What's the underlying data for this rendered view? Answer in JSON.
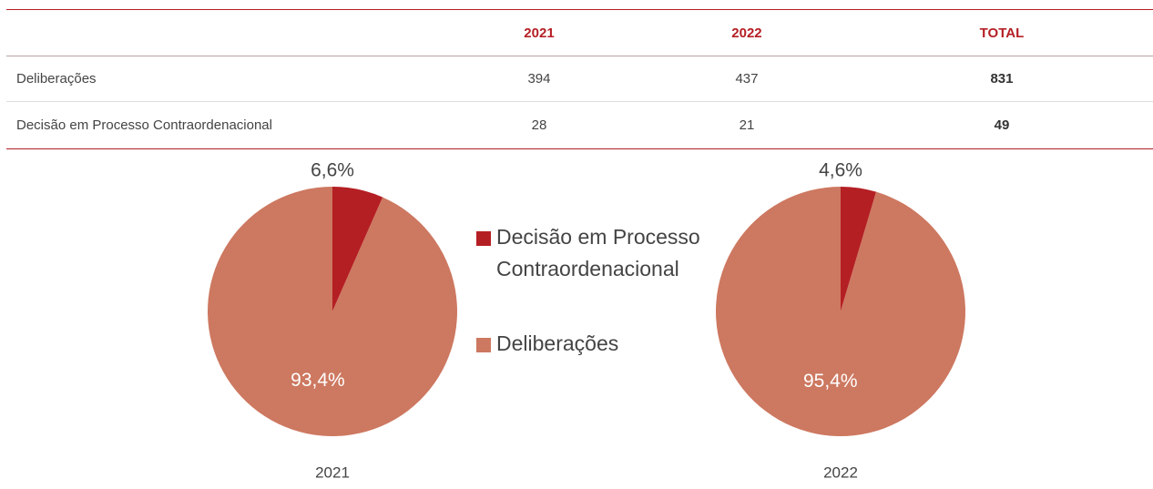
{
  "table": {
    "header": [
      "",
      "2021",
      "2022",
      "TOTAL"
    ],
    "rows": [
      [
        "Deliberações",
        394,
        437,
        831
      ],
      [
        "Decisão em Processo Contraordenacional",
        28,
        21,
        49
      ]
    ]
  },
  "chart_data": [
    {
      "type": "pie",
      "title": "2021",
      "categories": [
        "Decisão em Processo Contraordenacional",
        "Deliberações"
      ],
      "values": [
        6.6,
        93.4
      ],
      "value_labels": [
        "6,6%",
        "93,4%"
      ],
      "colors": [
        "#b41f24",
        "#cd7860"
      ]
    },
    {
      "type": "pie",
      "title": "2022",
      "categories": [
        "Decisão em Processo Contraordenacional",
        "Deliberações"
      ],
      "values": [
        4.6,
        95.4
      ],
      "value_labels": [
        "4,6%",
        "95,4%"
      ],
      "colors": [
        "#b41f24",
        "#cd7860"
      ]
    }
  ]
}
